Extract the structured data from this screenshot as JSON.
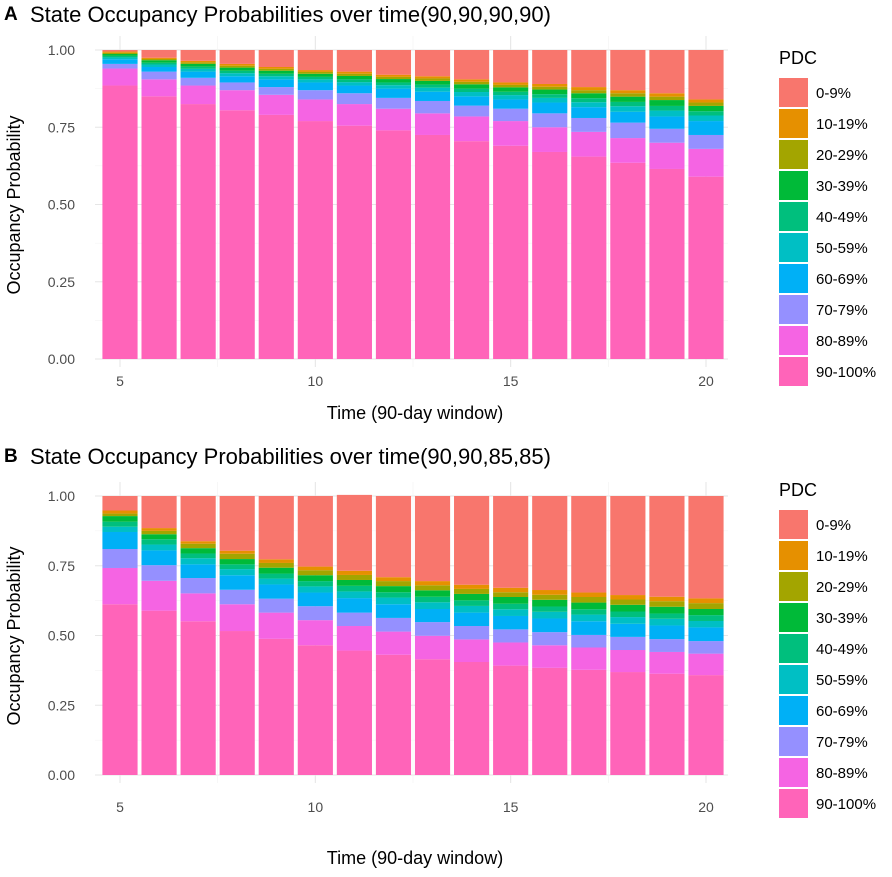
{
  "legend": {
    "title": "PDC",
    "categories": [
      "0-9%",
      "10-19%",
      "20-29%",
      "30-39%",
      "40-49%",
      "50-59%",
      "60-69%",
      "70-79%",
      "80-89%",
      "90-100%"
    ],
    "colors": [
      "#F8766D",
      "#E69000",
      "#A3A500",
      "#00BA38",
      "#00BF7D",
      "#00BFC4",
      "#00B0F6",
      "#9590FF",
      "#F564E3",
      "#FF64B9"
    ]
  },
  "chart_data": [
    {
      "panel": "A",
      "type": "bar",
      "stacked": true,
      "title": "State Occupancy Probabilities over time(90,90,90,90)",
      "xlabel": "Time (90-day window)",
      "ylabel": "Occupancy Probability",
      "x": [
        5,
        6,
        7,
        8,
        9,
        10,
        11,
        12,
        13,
        14,
        15,
        16,
        17,
        18,
        19,
        20
      ],
      "xticks": [
        5,
        10,
        15,
        20
      ],
      "yticks": [
        "0.00",
        "0.25",
        "0.50",
        "0.75",
        "1.00"
      ],
      "ylim": [
        0,
        1
      ],
      "series": [
        {
          "name": "90-100%",
          "values": [
            0.885,
            0.85,
            0.825,
            0.805,
            0.79,
            0.77,
            0.755,
            0.74,
            0.725,
            0.705,
            0.69,
            0.67,
            0.655,
            0.635,
            0.615,
            0.59
          ]
        },
        {
          "name": "80-89%",
          "values": [
            0.055,
            0.055,
            0.06,
            0.065,
            0.065,
            0.07,
            0.07,
            0.07,
            0.07,
            0.08,
            0.08,
            0.08,
            0.08,
            0.08,
            0.085,
            0.09
          ]
        },
        {
          "name": "70-79%",
          "values": [
            0.015,
            0.025,
            0.025,
            0.025,
            0.025,
            0.03,
            0.035,
            0.035,
            0.04,
            0.035,
            0.04,
            0.045,
            0.045,
            0.05,
            0.045,
            0.045
          ]
        },
        {
          "name": "60-69%",
          "values": [
            0.015,
            0.015,
            0.02,
            0.02,
            0.025,
            0.025,
            0.025,
            0.03,
            0.03,
            0.03,
            0.03,
            0.035,
            0.035,
            0.035,
            0.04,
            0.045
          ]
        },
        {
          "name": "50-59%",
          "values": [
            0.006,
            0.008,
            0.009,
            0.01,
            0.01,
            0.01,
            0.011,
            0.011,
            0.013,
            0.014,
            0.014,
            0.015,
            0.016,
            0.018,
            0.019,
            0.018
          ]
        },
        {
          "name": "40-49%",
          "values": [
            0.005,
            0.006,
            0.007,
            0.008,
            0.008,
            0.008,
            0.009,
            0.009,
            0.01,
            0.011,
            0.011,
            0.012,
            0.013,
            0.014,
            0.015,
            0.014
          ]
        },
        {
          "name": "30-39%",
          "values": [
            0.006,
            0.008,
            0.009,
            0.01,
            0.01,
            0.01,
            0.011,
            0.011,
            0.012,
            0.014,
            0.014,
            0.015,
            0.016,
            0.017,
            0.019,
            0.017
          ]
        },
        {
          "name": "20-29%",
          "values": [
            0.004,
            0.004,
            0.005,
            0.006,
            0.006,
            0.006,
            0.007,
            0.007,
            0.008,
            0.008,
            0.008,
            0.009,
            0.01,
            0.011,
            0.011,
            0.011
          ]
        },
        {
          "name": "10-19%",
          "values": [
            0.004,
            0.004,
            0.005,
            0.006,
            0.006,
            0.006,
            0.007,
            0.007,
            0.007,
            0.008,
            0.008,
            0.009,
            0.01,
            0.01,
            0.011,
            0.01
          ]
        },
        {
          "name": "0-9%",
          "values": [
            0.005,
            0.025,
            0.035,
            0.045,
            0.055,
            0.065,
            0.07,
            0.08,
            0.085,
            0.095,
            0.105,
            0.11,
            0.12,
            0.13,
            0.14,
            0.16
          ]
        }
      ]
    },
    {
      "panel": "B",
      "type": "bar",
      "stacked": true,
      "title": "State Occupancy Probabilities over time(90,90,85,85)",
      "xlabel": "Time (90-day window)",
      "ylabel": "Occupancy Probability",
      "x": [
        5,
        6,
        7,
        8,
        9,
        10,
        11,
        12,
        13,
        14,
        15,
        16,
        17,
        18,
        19,
        20
      ],
      "xticks": [
        5,
        10,
        15,
        20
      ],
      "yticks": [
        "0.00",
        "0.25",
        "0.50",
        "0.75",
        "1.00"
      ],
      "ylim": [
        0,
        1
      ],
      "series": [
        {
          "name": "90-100%",
          "values": [
            0.612,
            0.589,
            0.551,
            0.516,
            0.488,
            0.465,
            0.446,
            0.431,
            0.415,
            0.405,
            0.392,
            0.384,
            0.377,
            0.369,
            0.363,
            0.358
          ]
        },
        {
          "name": "80-89%",
          "values": [
            0.13,
            0.107,
            0.1,
            0.096,
            0.094,
            0.09,
            0.088,
            0.083,
            0.084,
            0.081,
            0.083,
            0.081,
            0.08,
            0.079,
            0.078,
            0.077
          ]
        },
        {
          "name": "70-79%",
          "values": [
            0.068,
            0.056,
            0.055,
            0.052,
            0.05,
            0.05,
            0.048,
            0.049,
            0.049,
            0.048,
            0.047,
            0.047,
            0.045,
            0.047,
            0.046,
            0.045
          ]
        },
        {
          "name": "60-69%",
          "values": [
            0.061,
            0.053,
            0.049,
            0.052,
            0.051,
            0.049,
            0.052,
            0.049,
            0.047,
            0.048,
            0.048,
            0.049,
            0.049,
            0.047,
            0.049,
            0.049
          ]
        },
        {
          "name": "50-59%",
          "values": [
            0.019,
            0.021,
            0.022,
            0.022,
            0.021,
            0.022,
            0.024,
            0.024,
            0.024,
            0.024,
            0.024,
            0.024,
            0.024,
            0.024,
            0.024,
            0.023
          ]
        },
        {
          "name": "40-49%",
          "values": [
            0.018,
            0.019,
            0.017,
            0.017,
            0.018,
            0.019,
            0.02,
            0.019,
            0.02,
            0.02,
            0.02,
            0.019,
            0.019,
            0.02,
            0.019,
            0.021
          ]
        },
        {
          "name": "30-39%",
          "values": [
            0.02,
            0.018,
            0.019,
            0.019,
            0.021,
            0.021,
            0.021,
            0.022,
            0.023,
            0.023,
            0.024,
            0.024,
            0.024,
            0.024,
            0.024,
            0.022
          ]
        },
        {
          "name": "20-29%",
          "values": [
            0.009,
            0.012,
            0.016,
            0.019,
            0.017,
            0.018,
            0.018,
            0.018,
            0.018,
            0.018,
            0.017,
            0.018,
            0.02,
            0.019,
            0.02,
            0.021
          ]
        },
        {
          "name": "10-19%",
          "values": [
            0.011,
            0.01,
            0.009,
            0.011,
            0.013,
            0.013,
            0.015,
            0.014,
            0.015,
            0.015,
            0.016,
            0.017,
            0.016,
            0.016,
            0.016,
            0.017
          ]
        },
        {
          "name": "0-9%",
          "values": [
            0.052,
            0.115,
            0.162,
            0.196,
            0.227,
            0.253,
            0.272,
            0.291,
            0.305,
            0.318,
            0.329,
            0.337,
            0.346,
            0.355,
            0.361,
            0.367
          ]
        }
      ]
    }
  ]
}
